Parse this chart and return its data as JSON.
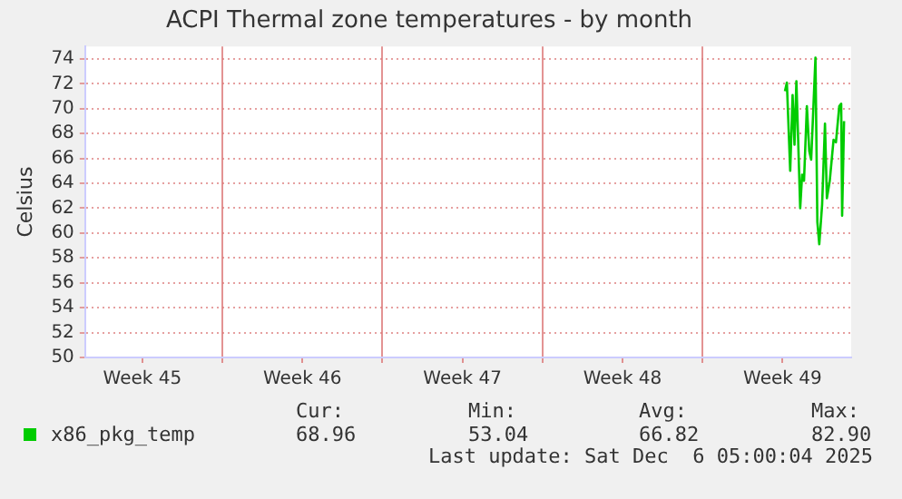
{
  "chart_data": {
    "type": "line",
    "title": "ACPI Thermal zone temperatures - by month",
    "ylabel": "Celsius",
    "x": [
      "2025-12-04T14:30",
      "2025-12-04T16:30",
      "2025-12-04T20:00",
      "2025-12-04T22:30",
      "2025-12-05T00:30",
      "2025-12-05T02:30",
      "2025-12-05T06:30",
      "2025-12-05T08:30",
      "2025-12-05T10:30",
      "2025-12-05T13:30",
      "2025-12-05T16:00",
      "2025-12-05T18:00",
      "2025-12-05T20:00",
      "2025-12-05T22:30",
      "2025-12-06T00:30",
      "2025-12-06T02:30",
      "2025-12-06T05:30",
      "2025-12-06T08:30",
      "2025-12-06T10:30",
      "2025-12-06T13:30",
      "2025-12-06T17:30",
      "2025-12-06T20:00",
      "2025-12-06T23:30",
      "2025-12-07T01:30",
      "2025-12-07T02:30",
      "2025-12-07T04:30"
    ],
    "series": [
      {
        "name": "x86_pkg_temp",
        "color": "#00cc00",
        "values": [
          71.4,
          72.1,
          65.0,
          71.1,
          67.1,
          72.2,
          62.0,
          64.7,
          64.2,
          70.2,
          66.6,
          65.9,
          69.5,
          74.1,
          60.9,
          59.1,
          62.3,
          68.8,
          62.8,
          64.2,
          67.5,
          67.3,
          70.2,
          70.4,
          61.4,
          69.0
        ]
      }
    ],
    "xlim": [
      "2025-11-04",
      "2025-12-07T12:00"
    ],
    "xticks": [
      {
        "value": "2025-11-06T12:00",
        "label": "Week 45"
      },
      {
        "value": "2025-11-10",
        "label": null
      },
      {
        "value": "2025-11-13T12:00",
        "label": "Week 46"
      },
      {
        "value": "2025-11-17",
        "label": null
      },
      {
        "value": "2025-11-20T12:00",
        "label": "Week 47"
      },
      {
        "value": "2025-11-24",
        "label": null
      },
      {
        "value": "2025-11-27T12:00",
        "label": "Week 48"
      },
      {
        "value": "2025-12-01",
        "label": null
      },
      {
        "value": "2025-12-04T12:00",
        "label": "Week 49"
      }
    ],
    "ylim": [
      50,
      75
    ],
    "yticks": [
      50,
      52,
      54,
      56,
      58,
      60,
      62,
      64,
      66,
      68,
      70,
      72,
      74
    ],
    "grid": true,
    "legend": "bottom left",
    "marker": "none",
    "line_style": "solid",
    "annotations": [
      "Cur:",
      "Min:",
      "Avg:",
      "Max:",
      "68.96",
      "53.04",
      "66.82",
      "82.90",
      "Last update: Sat Dec  6 05:00:04 2025"
    ]
  }
}
